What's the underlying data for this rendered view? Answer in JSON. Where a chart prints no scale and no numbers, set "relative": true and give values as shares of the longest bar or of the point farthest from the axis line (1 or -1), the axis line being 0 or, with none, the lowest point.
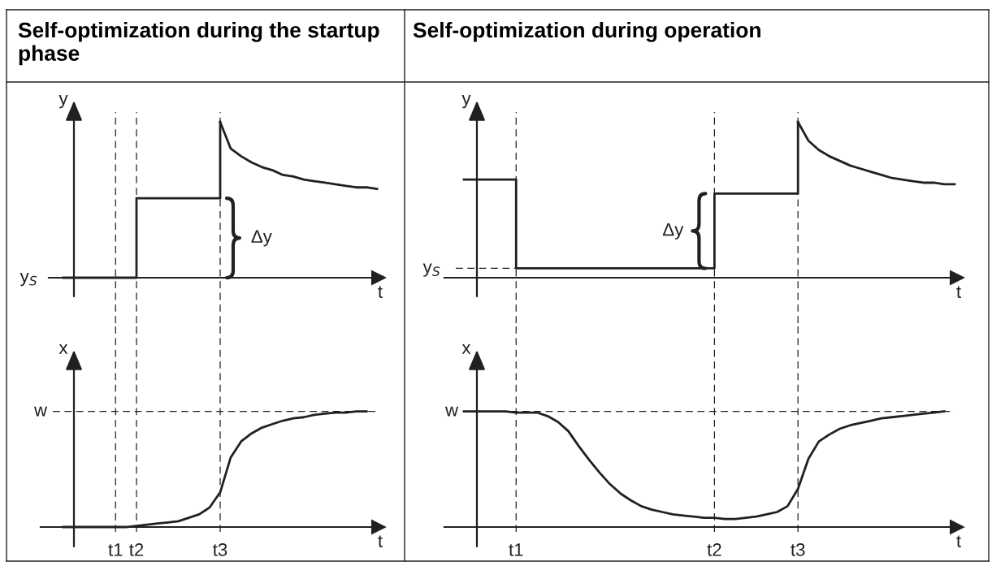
{
  "chart_data": [
    {
      "type": "step",
      "title": "Self-optimization during the startup phase",
      "xlabel": "t",
      "ylabel": "y",
      "relative": true,
      "tick_labels": false,
      "categories": [
        null,
        null,
        null,
        null,
        null,
        null,
        "t1",
        null,
        "t2",
        null,
        null,
        null,
        null,
        null,
        null,
        null,
        "t3",
        null,
        null,
        null,
        null,
        null,
        null,
        null,
        null,
        null,
        null,
        null,
        null,
        null,
        null,
        null
      ],
      "series": [
        {
          "type": "step",
          "color": "#231f20",
          "values": [
            null,
            0,
            0,
            0,
            0,
            0,
            0,
            0,
            0.51,
            0.51,
            0.51,
            0.51,
            0.51,
            0.51,
            0.51,
            0.51,
            1,
            null,
            null,
            null,
            null,
            null,
            null,
            null,
            null,
            null,
            null,
            null,
            null,
            null,
            null,
            null
          ]
        },
        {
          "type": "line",
          "color": "#231f20",
          "values": [
            null,
            null,
            null,
            null,
            null,
            null,
            null,
            null,
            null,
            null,
            null,
            null,
            null,
            null,
            null,
            null,
            1,
            0.83,
            0.78,
            0.74,
            0.71,
            0.69,
            0.66,
            0.65,
            0.63,
            0.62,
            0.61,
            0.6,
            0.59,
            0.58,
            0.58,
            0.57
          ]
        }
      ],
      "ref_lines": [
        {
          "axis": "x",
          "value": "t1",
          "line_style": "dashed",
          "color": "#231f20"
        },
        {
          "axis": "x",
          "value": "t2",
          "line_style": "dashed",
          "color": "#231f20"
        },
        {
          "axis": "x",
          "value": "t3",
          "line_style": "dashed",
          "color": "#231f20"
        }
      ],
      "annotations": [
        "y$_{S}$",
        {
          "text": "Δy",
          "x": "t3",
          "y": 0.255
        }
      ]
    },
    {
      "type": "step",
      "title": "Self-optimization during operation",
      "xlabel": "t",
      "ylabel": "y",
      "relative": true,
      "tick_labels": false,
      "categories": [
        null,
        null,
        null,
        null,
        null,
        "t1",
        null,
        null,
        null,
        null,
        null,
        null,
        null,
        null,
        null,
        null,
        null,
        null,
        null,
        null,
        null,
        null,
        null,
        null,
        "t2",
        null,
        null,
        null,
        null,
        null,
        null,
        null,
        "t3",
        null,
        null,
        null,
        null,
        null,
        null,
        null,
        null,
        null,
        null,
        null,
        null,
        null,
        null,
        null
      ],
      "series": [
        {
          "type": "step",
          "color": "#231f20",
          "values": [
            0.63,
            0.63,
            0.63,
            0.63,
            0.63,
            0.06,
            0.06,
            0.06,
            0.06,
            0.06,
            0.06,
            0.06,
            0.06,
            0.06,
            0.06,
            0.06,
            0.06,
            0.06,
            0.06,
            0.06,
            0.06,
            0.06,
            0.06,
            0.06,
            0.54,
            0.54,
            0.54,
            0.54,
            0.54,
            0.54,
            0.54,
            0.54,
            1,
            null,
            null,
            null,
            null,
            null,
            null,
            null,
            null,
            null,
            null,
            null,
            null,
            null,
            null,
            null
          ]
        },
        {
          "type": "line",
          "color": "#231f20",
          "values": [
            null,
            null,
            null,
            null,
            null,
            null,
            null,
            null,
            null,
            null,
            null,
            null,
            null,
            null,
            null,
            null,
            null,
            null,
            null,
            null,
            null,
            null,
            null,
            null,
            null,
            null,
            null,
            null,
            null,
            null,
            null,
            null,
            1,
            0.88,
            0.82,
            0.78,
            0.75,
            0.72,
            0.7,
            0.68,
            0.66,
            0.64,
            0.63,
            0.62,
            0.61,
            0.61,
            0.6,
            0.6
          ]
        }
      ],
      "ref_lines": [
        {
          "axis": "x",
          "value": "t1",
          "line_style": "dashed",
          "color": "#231f20"
        },
        {
          "axis": "x",
          "value": "t2",
          "line_style": "dashed",
          "color": "#231f20"
        },
        {
          "axis": "x",
          "value": "t3",
          "line_style": "dashed",
          "color": "#231f20"
        },
        {
          "axis": "y",
          "value": 0.06,
          "label": "y$_{S}$",
          "line_style": "dashed",
          "color": "#231f20"
        }
      ],
      "annotations": [
        {
          "text": "Δy",
          "x": "t2",
          "y": 0.3
        }
      ]
    },
    {
      "type": "line",
      "xlabel": "t",
      "ylabel": "x",
      "relative": true,
      "tick_labels": "x",
      "categories": [
        null,
        null,
        null,
        null,
        null,
        null,
        "t1",
        null,
        "t2",
        null,
        null,
        null,
        null,
        null,
        null,
        null,
        "t3",
        null,
        null,
        null,
        null,
        null,
        null,
        null,
        null,
        null,
        null,
        null,
        null,
        null,
        null,
        null
      ],
      "series": [
        {
          "color": "#231f20",
          "values": [
            null,
            0,
            0,
            0,
            0,
            0,
            0,
            0,
            0.01,
            0.02,
            0.03,
            0.04,
            0.05,
            0.08,
            0.11,
            0.17,
            0.3,
            0.6,
            0.74,
            0.81,
            0.86,
            0.89,
            0.92,
            0.94,
            0.95,
            0.97,
            0.98,
            0.99,
            0.99,
            1,
            1,
            null
          ]
        },
        {
          "name": "w",
          "color": "#231f20",
          "line_style": "dashed",
          "values": [
            1,
            1,
            1,
            1,
            1,
            1,
            1,
            1,
            1,
            1,
            1,
            1,
            1,
            1,
            1,
            1,
            1,
            1,
            1,
            1,
            1,
            1,
            1,
            1,
            1,
            1,
            1,
            1,
            1,
            1,
            1,
            1
          ]
        }
      ],
      "ref_lines": [
        {
          "axis": "x",
          "value": "t1",
          "line_style": "dashed",
          "color": "#231f20"
        },
        {
          "axis": "x",
          "value": "t2",
          "line_style": "dashed",
          "color": "#231f20"
        },
        {
          "axis": "x",
          "value": "t3",
          "line_style": "dashed",
          "color": "#231f20"
        }
      ]
    },
    {
      "type": "line",
      "xlabel": "t",
      "ylabel": "x",
      "relative": true,
      "tick_labels": "x",
      "categories": [
        null,
        null,
        null,
        null,
        null,
        "t1",
        null,
        null,
        null,
        null,
        null,
        null,
        null,
        null,
        null,
        null,
        null,
        null,
        null,
        null,
        null,
        null,
        null,
        null,
        "t2",
        null,
        null,
        null,
        null,
        null,
        null,
        null,
        "t3",
        null,
        null,
        null,
        null,
        null,
        null,
        null,
        null,
        null,
        null,
        null,
        null,
        null,
        null,
        null
      ],
      "series": [
        {
          "color": "#231f20",
          "values": [
            1,
            1,
            1,
            1,
            1,
            0.99,
            0.99,
            0.99,
            0.96,
            0.91,
            0.83,
            0.7,
            0.58,
            0.47,
            0.37,
            0.29,
            0.23,
            0.18,
            0.15,
            0.13,
            0.11,
            0.1,
            0.09,
            0.08,
            0.08,
            0.07,
            0.07,
            0.08,
            0.09,
            0.11,
            0.13,
            0.18,
            0.33,
            0.59,
            0.74,
            0.8,
            0.85,
            0.88,
            0.9,
            0.92,
            0.94,
            0.95,
            0.96,
            0.97,
            0.98,
            0.99,
            1,
            null
          ]
        },
        {
          "name": "w",
          "color": "#231f20",
          "line_style": "dashed",
          "values": [
            1,
            1,
            1,
            1,
            1,
            1,
            1,
            1,
            1,
            1,
            1,
            1,
            1,
            1,
            1,
            1,
            1,
            1,
            1,
            1,
            1,
            1,
            1,
            1,
            1,
            1,
            1,
            1,
            1,
            1,
            1,
            1,
            1,
            1,
            1,
            1,
            1,
            1,
            1,
            1,
            1,
            1,
            1,
            1,
            1,
            1,
            1,
            1
          ]
        }
      ],
      "ref_lines": [
        {
          "axis": "x",
          "value": "t1",
          "line_style": "dashed",
          "color": "#231f20"
        },
        {
          "axis": "x",
          "value": "t2",
          "line_style": "dashed",
          "color": "#231f20"
        },
        {
          "axis": "x",
          "value": "t3",
          "line_style": "dashed",
          "color": "#231f20"
        }
      ]
    }
  ]
}
